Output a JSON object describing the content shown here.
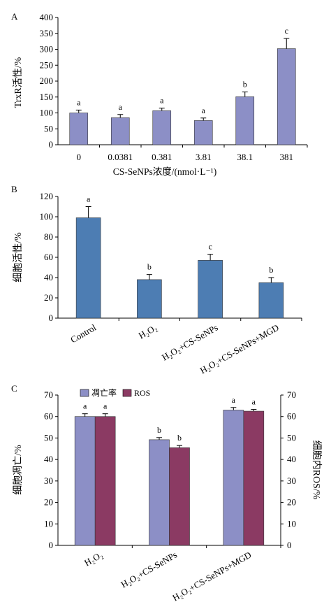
{
  "chart_data": [
    {
      "panel": "A",
      "type": "bar",
      "xlabel": "CS-SeNPs浓度/(nmol·L⁻¹)",
      "ylabel": "TrxR活性/%",
      "ylim": [
        0,
        400
      ],
      "yticks": [
        "0",
        "50",
        "100",
        "150",
        "200",
        "250",
        "300",
        "350",
        "400"
      ],
      "categories": [
        "0",
        "0.0381",
        "0.381",
        "3.81",
        "38.1",
        "381"
      ],
      "series": [
        {
          "values": [
            100,
            85,
            107,
            76,
            151,
            302
          ],
          "errors": [
            9,
            10,
            8,
            8,
            15,
            32
          ],
          "letters": [
            "a",
            "a",
            "a",
            "a",
            "b",
            "c"
          ],
          "color": "#8c8fc6"
        }
      ]
    },
    {
      "panel": "B",
      "type": "bar",
      "xlabel": "",
      "ylabel": "细胞活性/%",
      "ylim": [
        0,
        120
      ],
      "yticks": [
        "0",
        "20",
        "40",
        "60",
        "80",
        "100",
        "120"
      ],
      "categories": [
        "Control",
        "H₂O₂",
        "H₂O₂+CS-SeNPs",
        "H₂O₂+CS-SeNPs+MGD"
      ],
      "series": [
        {
          "values": [
            99,
            38,
            57,
            35
          ],
          "errors": [
            11,
            5,
            6,
            5
          ],
          "letters": [
            "a",
            "b",
            "c",
            "b"
          ],
          "color": "#4d7db3"
        }
      ]
    },
    {
      "panel": "C",
      "type": "bar",
      "xlabel": "",
      "ylabel": "细胞凋亡/%",
      "ylabel_right": "细胞内ROS/%",
      "ylim": [
        0,
        70
      ],
      "yticks": [
        "0",
        "10",
        "20",
        "30",
        "40",
        "50",
        "60",
        "70"
      ],
      "categories": [
        "H₂O₂",
        "H₂O₂+CS-SeNPs",
        "H₂O₂+CS-SeNPs+MGD"
      ],
      "legend_position": "top-left",
      "series": [
        {
          "name": "凋亡率",
          "values": [
            60,
            49.2,
            63
          ],
          "errors": [
            1.3,
            1.0,
            1.2
          ],
          "letters": [
            "a",
            "b",
            "a"
          ],
          "color": "#8c8fc6"
        },
        {
          "name": "ROS",
          "values": [
            60,
            45.5,
            62.5
          ],
          "errors": [
            1.3,
            1.0,
            0.8
          ],
          "letters": [
            "a",
            "b",
            "a"
          ],
          "color": "#8b3a63"
        }
      ]
    }
  ]
}
